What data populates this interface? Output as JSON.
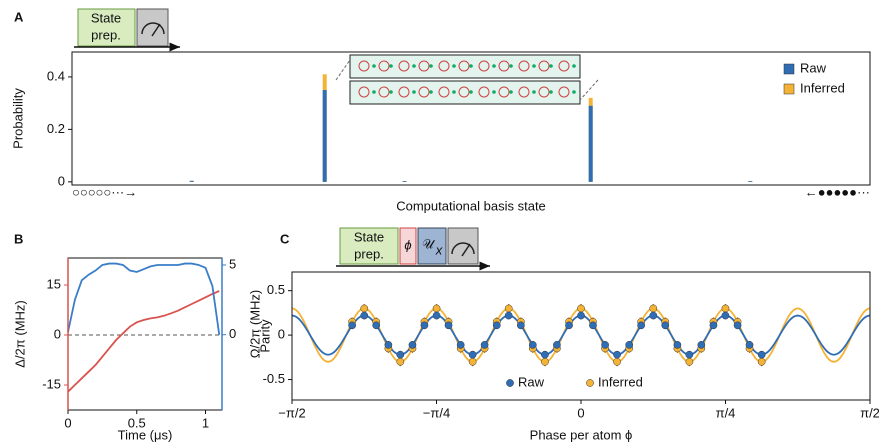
{
  "chart_data": [
    {
      "type": "bar",
      "panel": "A",
      "sequence": [
        "State",
        "prep."
      ],
      "ylabel": "Probability",
      "xlabel": "Computational basis state",
      "start_label": "○○○○○···→",
      "end_label": "←●●●●●···",
      "categories": [
        null,
        null,
        null,
        null,
        null,
        null,
        null,
        null,
        null,
        null,
        null,
        null,
        null,
        null,
        null,
        null,
        null,
        null,
        null,
        null,
        null,
        null,
        null,
        null,
        null,
        null,
        null,
        null,
        null,
        null
      ],
      "series": [
        {
          "name": "Raw",
          "color": "#2f6db5",
          "values": [
            0,
            0,
            0,
            0,
            0.004,
            0,
            0,
            0,
            0,
            0.35,
            0,
            0,
            0.003,
            0,
            0,
            0,
            0,
            0,
            0,
            0.29,
            0,
            0,
            0,
            0,
            0,
            0.003,
            0,
            0,
            0,
            0
          ]
        },
        {
          "name": "Inferred",
          "color": "#f5b335",
          "values": [
            0,
            0,
            0,
            0,
            0.004,
            0,
            0,
            0,
            0,
            0.41,
            0,
            0,
            0.003,
            0,
            0,
            0,
            0,
            0,
            0,
            0.32,
            0,
            0,
            0,
            0,
            0,
            0.003,
            0,
            0,
            0,
            0
          ]
        }
      ],
      "ylim": [
        -0.012,
        0.495
      ],
      "yticks": [
        0,
        0.2,
        0.4
      ],
      "legend": "upper right"
    },
    {
      "type": "line",
      "panel": "B",
      "xlabel": "Time (μs)",
      "ylabel": "Δ/2π (MHz)",
      "y2label": "Ω/2π (MHz)",
      "x": [
        0,
        0.05,
        0.1,
        0.15,
        0.2,
        0.25,
        0.3,
        0.35,
        0.4,
        0.45,
        0.5,
        0.55,
        0.6,
        0.65,
        0.7,
        0.75,
        0.8,
        0.85,
        0.9,
        0.95,
        1.0,
        1.05,
        1.1
      ],
      "series": [
        {
          "name": "Δ/2π",
          "color": "#d9534f",
          "values": [
            -17,
            -15,
            -13,
            -11,
            -9,
            -6.5,
            -4,
            -1.5,
            0.5,
            2.5,
            3.8,
            4.5,
            5,
            5.3,
            5.8,
            6.5,
            7.3,
            8.3,
            9.3,
            10.3,
            11.3,
            12.3,
            13.2
          ]
        },
        {
          "name": "Ω/2π",
          "color": "#3a7dc9",
          "axis": "y2",
          "values": [
            0.2,
            2.5,
            3.9,
            4.3,
            4.6,
            5.0,
            5.1,
            5.1,
            5.0,
            4.6,
            4.5,
            4.7,
            4.9,
            5.0,
            5.0,
            5.0,
            5.0,
            5.1,
            5.1,
            5.0,
            4.8,
            3.5,
            0
          ]
        }
      ],
      "xlim": [
        0,
        1.12
      ],
      "xticks": [
        0,
        0.5,
        1
      ],
      "ylim": [
        -22.5,
        23.1
      ],
      "yticks": [
        -15,
        0,
        15
      ],
      "y2lim": [
        -5.4,
        5.5
      ],
      "y2ticks": [
        0,
        5
      ],
      "zero_line": true
    },
    {
      "type": "scatter",
      "panel": "C",
      "sequence": [
        "State",
        "prep."
      ],
      "phase_gate": "ϕ",
      "unitary": {
        "text": "𝒰",
        "subscript": "x"
      },
      "xlabel": "Phase per atom ϕ",
      "ylabel": "Parity",
      "x": [
        -1.244,
        -1.178,
        -1.113,
        -1.047,
        -0.982,
        -0.916,
        -0.851,
        -0.785,
        -0.72,
        -0.654,
        -0.589,
        -0.524,
        -0.458,
        -0.393,
        -0.327,
        -0.262,
        -0.196,
        -0.131,
        -0.065,
        0,
        0.065,
        0.131,
        0.196,
        0.262,
        0.327,
        0.393,
        0.458,
        0.524,
        0.589,
        0.654,
        0.72,
        0.785,
        0.851,
        0.916,
        0.982
      ],
      "series": [
        {
          "name": "Inferred",
          "color": "#f5b335",
          "error": 0.05,
          "fit": {
            "amplitude": 0.3,
            "frequency": 16
          },
          "values": [
            0.15,
            0.3,
            0.15,
            -0.15,
            -0.3,
            -0.15,
            0.15,
            0.3,
            0.15,
            -0.15,
            -0.3,
            -0.15,
            0.15,
            0.3,
            0.15,
            -0.15,
            -0.3,
            -0.15,
            0.15,
            0.3,
            0.15,
            -0.15,
            -0.3,
            -0.15,
            0.15,
            0.3,
            0.15,
            -0.15,
            -0.3,
            -0.15,
            0.15,
            0.3,
            0.15,
            -0.15,
            -0.3
          ]
        },
        {
          "name": "Raw",
          "color": "#2f6db5",
          "error": 0.04,
          "fit": {
            "amplitude": 0.22,
            "frequency": 16
          },
          "values": [
            0.11,
            0.22,
            0.11,
            -0.11,
            -0.22,
            -0.11,
            0.11,
            0.22,
            0.11,
            -0.11,
            -0.22,
            -0.11,
            0.11,
            0.22,
            0.11,
            -0.11,
            -0.22,
            -0.11,
            0.11,
            0.22,
            0.11,
            -0.11,
            -0.22,
            -0.11,
            0.11,
            0.22,
            0.11,
            -0.11,
            -0.22,
            -0.11,
            0.11,
            0.22,
            0.11,
            -0.11,
            -0.22
          ]
        }
      ],
      "xlim": [
        -1.5708,
        1.5708
      ],
      "xticks": [
        {
          "value": -1.5708,
          "label": "−π/2"
        },
        {
          "value": -0.7854,
          "label": "−π/4"
        },
        0,
        {
          "value": 0.7854,
          "label": "π/4"
        },
        {
          "value": 1.5708,
          "label": "π/2"
        }
      ],
      "ylim": [
        -0.73,
        0.71
      ],
      "yticks": [
        -0.5,
        0,
        0.5
      ],
      "legend": "lower center"
    }
  ]
}
